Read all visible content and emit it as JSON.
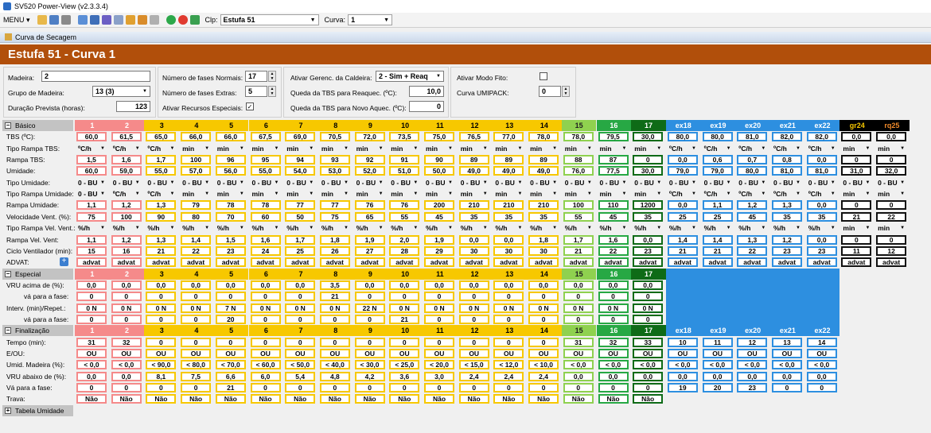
{
  "title": "SV520 Power-View (v2.3.3.4)",
  "toolbar": {
    "menu": "MENU",
    "clp_label": "Clp:",
    "clp_value": "Estufa 51",
    "curva_label": "Curva:",
    "curva_value": "1"
  },
  "form_title": "Curva de Secagem",
  "header": "Estufa 51 - Curva 1",
  "params": {
    "madeira_label": "Madeira:",
    "madeira": "2",
    "grupo_label": "Grupo de Madeira:",
    "grupo": "13 (3)",
    "duracao_label": "Duração Prevista (horas):",
    "duracao": "123",
    "fases_normais_label": "Número de fases Normais:",
    "fases_normais": "17",
    "fases_extras_label": "Número de fases Extras:",
    "fases_extras": "5",
    "recursos_label": "Ativar Recursos Especiais:",
    "caldeira_label": "Ativar Gerenc. da Caldeira:",
    "caldeira": "2 - Sim + Reaq",
    "queda_reaq_label": "Queda da TBS para Reaquec. (ºC):",
    "queda_reaq": "10,0",
    "queda_novo_label": "Queda da TBS para Novo Aquec. (ºC):",
    "queda_novo": "0",
    "fito_label": "Ativar Modo Fito:",
    "umipack_label": "Curva UMIPACK:",
    "umipack": "0"
  },
  "sections": {
    "basico": "Básico",
    "especial": "Especial",
    "finalizacao": "Finalização",
    "tabela": "Tabela Umidade"
  },
  "colors": {
    "pink": "#f58a8a",
    "yellow": "#f7c800",
    "lgreen": "#8fd14f",
    "mgreen": "#27a844",
    "dgreen": "#0e6b17",
    "blue": "#2d8fe0",
    "black": "#000000",
    "header": "#b14f0b"
  },
  "columns": [
    "1",
    "2",
    "3",
    "4",
    "5",
    "6",
    "7",
    "8",
    "9",
    "10",
    "11",
    "12",
    "13",
    "14",
    "15",
    "16",
    "17",
    "ex18",
    "ex19",
    "ex20",
    "ex21",
    "ex22",
    "gr24",
    "rq25"
  ],
  "basico_rows": [
    {
      "label": "TBS (ºC):",
      "values": [
        "60,0",
        "61,5",
        "65,0",
        "66,0",
        "66,0",
        "67,5",
        "69,0",
        "70,5",
        "72,0",
        "73,5",
        "75,0",
        "76,5",
        "77,0",
        "78,0",
        "78,0",
        "79,5",
        "30,0",
        "80,0",
        "80,0",
        "81,0",
        "82,0",
        "82,0",
        "0,0",
        "0,0"
      ]
    },
    {
      "label": "Tipo Rampa TBS:",
      "select": true,
      "values": [
        "ºC/h",
        "ºC/h",
        "ºC/h",
        "min",
        "min",
        "min",
        "min",
        "min",
        "min",
        "min",
        "min",
        "min",
        "min",
        "min",
        "min",
        "min",
        "min",
        "ºC/h",
        "ºC/h",
        "ºC/h",
        "ºC/h",
        "ºC/h",
        "min",
        "min"
      ]
    },
    {
      "label": "Rampa TBS:",
      "values": [
        "1,5",
        "1,6",
        "1,7",
        "100",
        "96",
        "95",
        "94",
        "93",
        "92",
        "91",
        "90",
        "89",
        "89",
        "89",
        "88",
        "87",
        "0",
        "0,0",
        "0,6",
        "0,7",
        "0,8",
        "0,0",
        "0",
        "0"
      ]
    },
    {
      "label": "Umidade:",
      "values": [
        "60,0",
        "59,0",
        "55,0",
        "57,0",
        "56,0",
        "55,0",
        "54,0",
        "53,0",
        "52,0",
        "51,0",
        "50,0",
        "49,0",
        "49,0",
        "49,0",
        "76,0",
        "77,5",
        "30,0",
        "79,0",
        "79,0",
        "80,0",
        "81,0",
        "81,0",
        "31,0",
        "32,0"
      ]
    },
    {
      "label": "Tipo Umidade:",
      "select": true,
      "values": [
        "0 - BU",
        "0 - BU",
        "0 - BU",
        "0 - BU",
        "0 - BU",
        "0 - BU",
        "0 - BU",
        "0 - BU",
        "0 - BU",
        "0 - BU",
        "0 - BU",
        "0 - BU",
        "0 - BU",
        "0 - BU",
        "0 - BU",
        "0 - BU",
        "0 - BU",
        "0 - BU",
        "0 - BU",
        "0 - BU",
        "0 - BU",
        "0 - BU",
        "0 - BU",
        "0 - BU"
      ]
    },
    {
      "label": "Tipo Rampa Umidade:",
      "select": true,
      "values": [
        "0 - BU",
        "ºC/h",
        "ºC/h",
        "min",
        "min",
        "min",
        "min",
        "min",
        "min",
        "min",
        "min",
        "min",
        "min",
        "min",
        "min",
        "min",
        "min",
        "ºC/h",
        "ºC/h",
        "ºC/h",
        "ºC/h",
        "ºC/h",
        "min",
        "min"
      ]
    },
    {
      "label": "Rampa Umidade:",
      "values": [
        "1,1",
        "1,2",
        "1,3",
        "79",
        "78",
        "78",
        "77",
        "77",
        "76",
        "76",
        "200",
        "210",
        "210",
        "210",
        "100",
        "110",
        "1200",
        "0,0",
        "1,1",
        "1,2",
        "1,3",
        "0,0",
        "0",
        "0"
      ]
    },
    {
      "label": "Velocidade Vent. (%):",
      "values": [
        "75",
        "100",
        "90",
        "80",
        "70",
        "60",
        "50",
        "75",
        "65",
        "55",
        "45",
        "35",
        "35",
        "35",
        "55",
        "45",
        "35",
        "25",
        "25",
        "45",
        "35",
        "35",
        "21",
        "22"
      ]
    },
    {
      "label": "Tipo Rampa Vel. Vent.:",
      "select": true,
      "values": [
        "%/h",
        "%/h",
        "%/h",
        "%/h",
        "%/h",
        "%/h",
        "%/h",
        "%/h",
        "%/h",
        "%/h",
        "%/h",
        "%/h",
        "%/h",
        "%/h",
        "%/h",
        "%/h",
        "%/h",
        "%/h",
        "%/h",
        "%/h",
        "%/h",
        "%/h",
        "min",
        "min"
      ]
    },
    {
      "label": "Rampa Vel. Vent:",
      "values": [
        "1,1",
        "1,2",
        "1,3",
        "1,4",
        "1,5",
        "1,6",
        "1,7",
        "1,8",
        "1,9",
        "2,0",
        "1,9",
        "0,0",
        "0,0",
        "1,8",
        "1,7",
        "1,6",
        "0,0",
        "1,4",
        "1,4",
        "1,3",
        "1,2",
        "0,0",
        "0",
        "0"
      ]
    },
    {
      "label": "Ciclo Ventilador (min):",
      "values": [
        "15",
        "16",
        "21",
        "22",
        "23",
        "24",
        "25",
        "26",
        "27",
        "28",
        "29",
        "30",
        "30",
        "30",
        "21",
        "22",
        "23",
        "21",
        "21",
        "22",
        "23",
        "23",
        "11",
        "12"
      ]
    },
    {
      "label": "ADVAT:",
      "plus": true,
      "values": [
        "advat",
        "advat",
        "advat",
        "advat",
        "advat",
        "advat",
        "advat",
        "advat",
        "advat",
        "advat",
        "advat",
        "advat",
        "advat",
        "advat",
        "advat",
        "advat",
        "advat",
        "advat",
        "advat",
        "advat",
        "advat",
        "advat",
        "advat",
        "advat"
      ]
    }
  ],
  "especial_rows": [
    {
      "label": "VRU acima de (%):",
      "values": [
        "0,0",
        "0,0",
        "0,0",
        "0,0",
        "0,0",
        "0,0",
        "0,0",
        "3,5",
        "0,0",
        "0,0",
        "0,0",
        "0,0",
        "0,0",
        "0,0",
        "0,0",
        "0,0",
        "0,0"
      ]
    },
    {
      "label": "vá para a fase:",
      "indent": true,
      "values": [
        "0",
        "0",
        "0",
        "0",
        "0",
        "0",
        "0",
        "21",
        "0",
        "0",
        "0",
        "0",
        "0",
        "0",
        "0",
        "0",
        "0"
      ]
    },
    {
      "label": "Interv. (min)/Repet.:",
      "values": [
        "0 N",
        "0 N",
        "0 N",
        "0 N",
        "7 N",
        "0 N",
        "0 N",
        "0 N",
        "22 N",
        "0 N",
        "0 N",
        "0 N",
        "0 N",
        "0 N",
        "0 N",
        "0 N",
        "0 N"
      ]
    },
    {
      "label": "vá para a fase:",
      "indent": true,
      "values": [
        "0",
        "0",
        "0",
        "0",
        "20",
        "0",
        "0",
        "0",
        "0",
        "21",
        "0",
        "0",
        "0",
        "0",
        "0",
        "0",
        "0"
      ]
    }
  ],
  "final_columns": [
    "1",
    "2",
    "3",
    "4",
    "5",
    "6",
    "7",
    "8",
    "9",
    "10",
    "11",
    "12",
    "13",
    "14",
    "15",
    "16",
    "17",
    "ex18",
    "ex19",
    "ex20",
    "ex21",
    "ex22"
  ],
  "final_rows": [
    {
      "label": "Tempo (min):",
      "values": [
        "31",
        "32",
        "0",
        "0",
        "0",
        "0",
        "0",
        "0",
        "0",
        "0",
        "0",
        "0",
        "0",
        "0",
        "31",
        "32",
        "33",
        "10",
        "11",
        "12",
        "13",
        "14"
      ]
    },
    {
      "label": "E/OU:",
      "values": [
        "OU",
        "OU",
        "OU",
        "OU",
        "OU",
        "OU",
        "OU",
        "OU",
        "OU",
        "OU",
        "OU",
        "OU",
        "OU",
        "OU",
        "OU",
        "OU",
        "OU",
        "OU",
        "OU",
        "OU",
        "OU",
        "OU"
      ]
    },
    {
      "label": "Umid. Madeira (%):",
      "values": [
        "< 0,0",
        "< 0,0",
        "< 90,0",
        "< 80,0",
        "< 70,0",
        "< 60,0",
        "< 50,0",
        "< 40,0",
        "< 30,0",
        "< 25,0",
        "< 20,0",
        "< 15,0",
        "< 12,0",
        "< 10,0",
        "< 0,0",
        "< 0,0",
        "< 0,0",
        "< 0,0",
        "< 0,0",
        "< 0,0",
        "< 0,0",
        "< 0,0"
      ]
    },
    {
      "label": "VRU abaixo de (%):",
      "values": [
        "0,0",
        "0,0",
        "8,1",
        "7,5",
        "6,6",
        "6,0",
        "5,4",
        "4,8",
        "4,2",
        "3,6",
        "3,0",
        "2,4",
        "2,4",
        "2,4",
        "0,0",
        "0,0",
        "0,0",
        "0,0",
        "0,0",
        "0,0",
        "0,0",
        "0,0"
      ]
    },
    {
      "label": "Vá para a fase:",
      "values": [
        "0",
        "0",
        "0",
        "0",
        "21",
        "0",
        "0",
        "0",
        "0",
        "0",
        "0",
        "0",
        "0",
        "0",
        "0",
        "0",
        "0",
        "19",
        "20",
        "23",
        "0",
        "0"
      ]
    },
    {
      "label": "Trava:",
      "values": [
        "Não",
        "Não",
        "Não",
        "Não",
        "Não",
        "Não",
        "Não",
        "Não",
        "Não",
        "Não",
        "Não",
        "Não",
        "Não",
        "Não",
        "Não",
        "Não",
        "Não"
      ]
    }
  ]
}
